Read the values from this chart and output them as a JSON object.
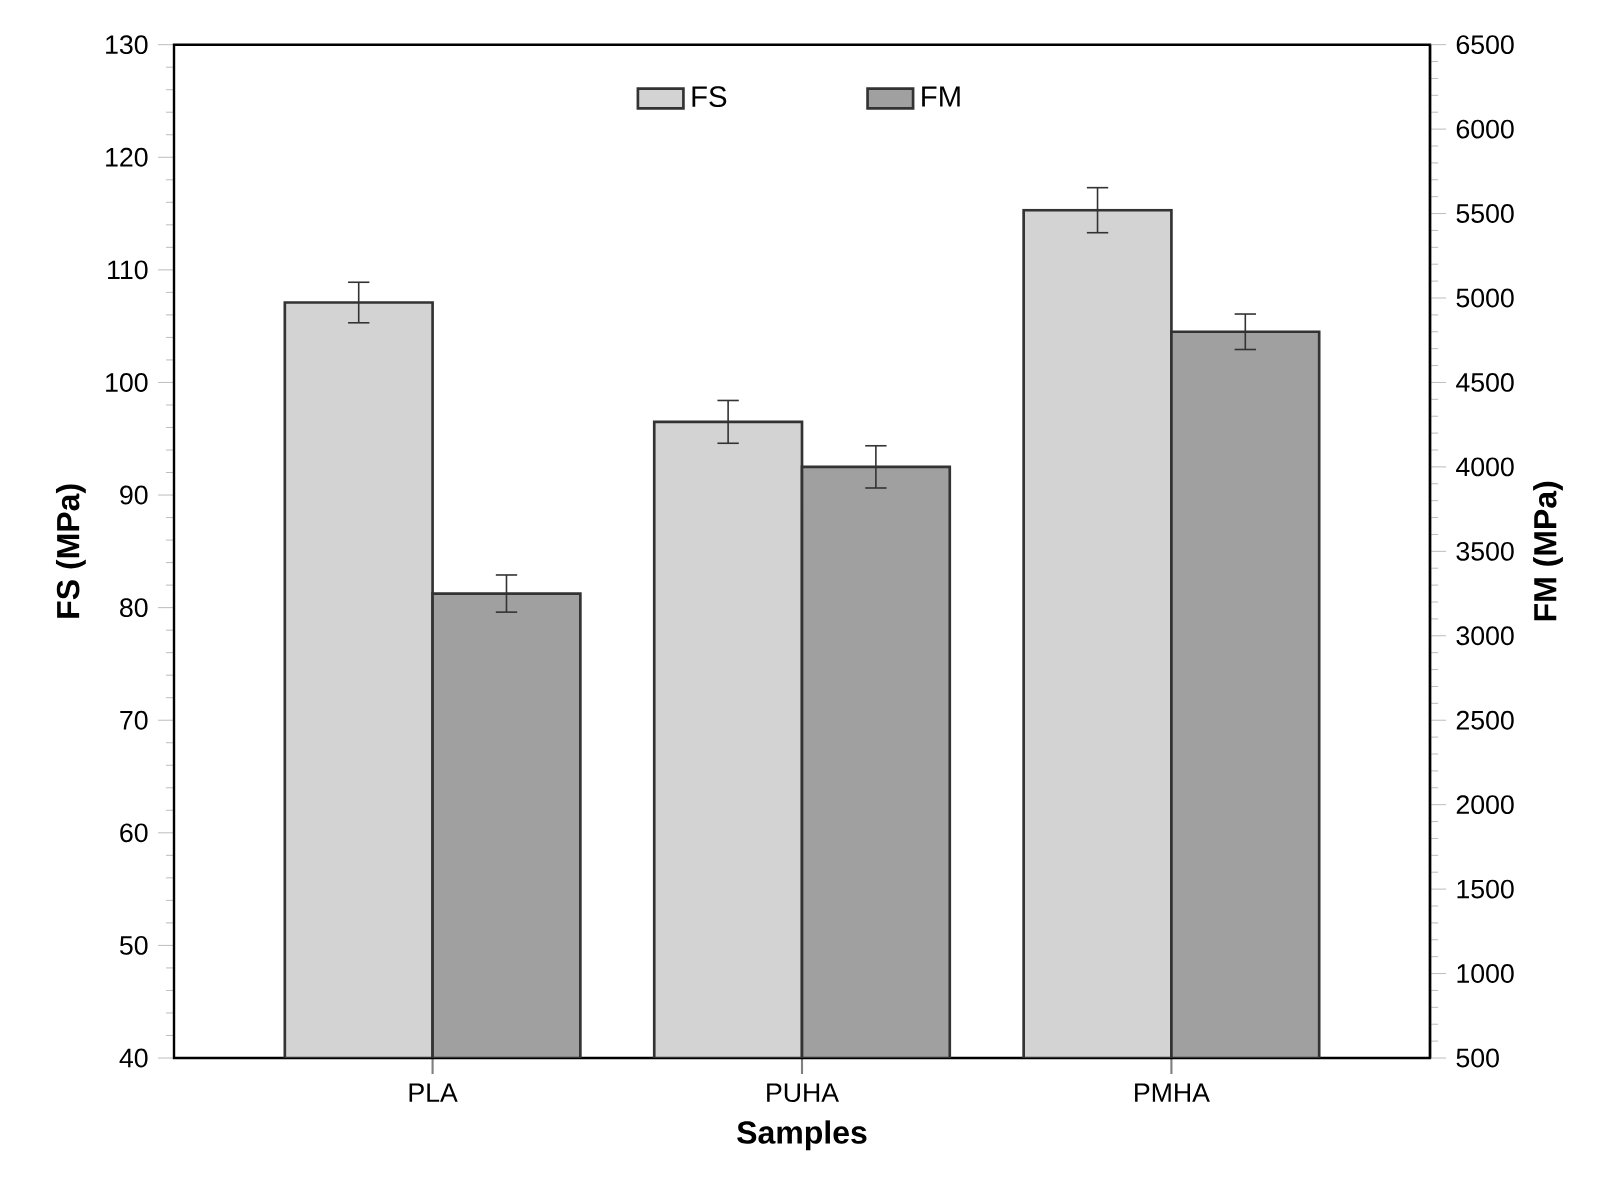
{
  "chart_data": {
    "type": "bar",
    "xlabel": "Samples",
    "ylabel": "FS (MPa)",
    "y2label": "FM (MPa)",
    "categories": [
      "PLA",
      "PUHA",
      "PMHA"
    ],
    "series": [
      {
        "name": "FS",
        "color": "#d3d3d3",
        "values": [
          107.1,
          96.5,
          115.3
        ],
        "errors": [
          1.8,
          1.9,
          2.0
        ]
      },
      {
        "name": "FM",
        "color": "#a0a0a0",
        "values": [
          3250,
          4000,
          4800
        ],
        "errors": [
          110,
          125,
          105
        ],
        "axis": "y2"
      }
    ],
    "ylim": [
      40,
      130
    ],
    "yticks": [
      40,
      50,
      60,
      70,
      80,
      90,
      100,
      110,
      120,
      130
    ],
    "y2lim": [
      500,
      6500
    ],
    "y2ticks": [
      500,
      1000,
      1500,
      2000,
      2500,
      3000,
      3500,
      4000,
      4500,
      5000,
      5500,
      6000,
      6500
    ],
    "legend": "top",
    "grid": false
  }
}
